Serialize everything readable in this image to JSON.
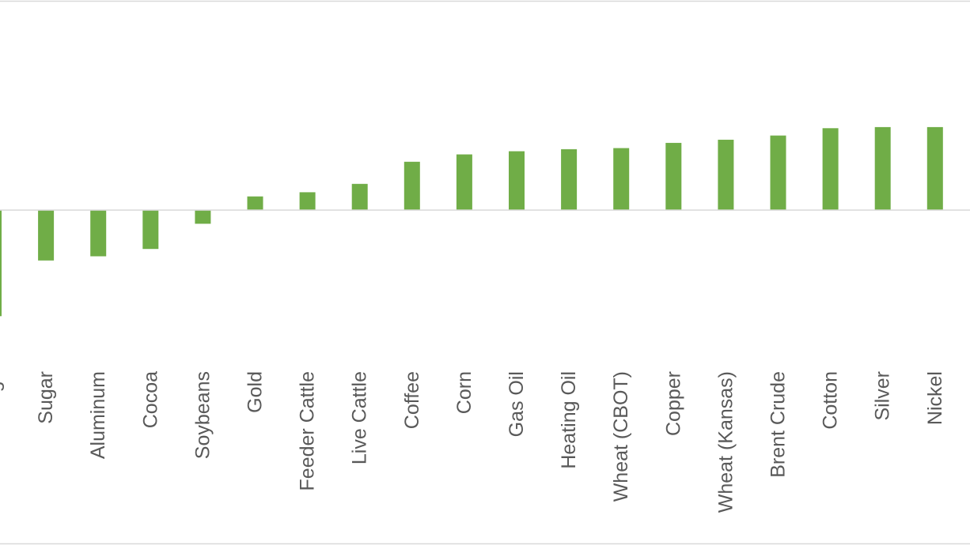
{
  "chart_data": {
    "type": "bar",
    "title": "",
    "xlabel": "",
    "ylabel": "",
    "categories": [
      "Lean Hogs",
      "Sugar",
      "Aluminum",
      "Cocoa",
      "Soybeans",
      "Gold",
      "Feeder Cattle",
      "Live Cattle",
      "Coffee",
      "Corn",
      "Gas Oil",
      "Heating Oil",
      "Wheat (CBOT)",
      "Copper",
      "Wheat (Kansas)",
      "Brent Crude",
      "Cotton",
      "Silver",
      "Nickel"
    ],
    "values": [
      -10.1,
      -4.8,
      -4.4,
      -3.7,
      -1.3,
      1.3,
      1.7,
      2.5,
      4.6,
      5.3,
      5.6,
      5.8,
      5.9,
      6.4,
      6.7,
      7.1,
      7.8,
      7.9,
      7.9
    ],
    "ylim": [
      -10.5,
      10
    ],
    "grid": false,
    "legend": "none",
    "bar_color": "#70ad47"
  }
}
